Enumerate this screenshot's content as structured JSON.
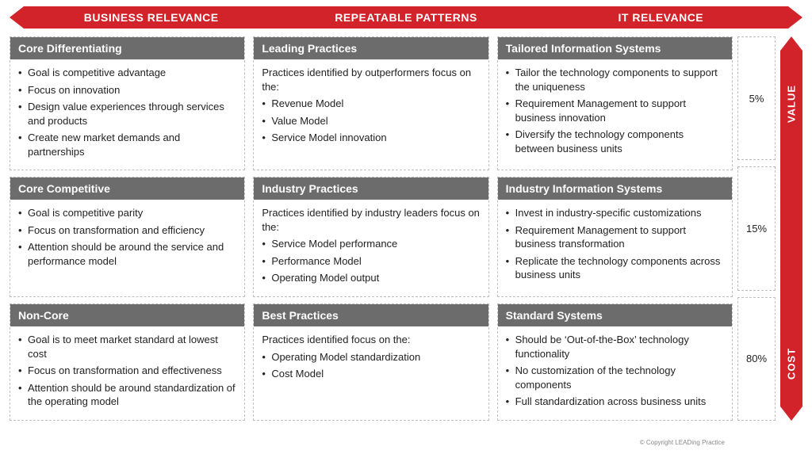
{
  "colors": {
    "red": "#d2232a",
    "gray": "#6c6c6c",
    "border": "#bfbfbf",
    "text": "#222222",
    "bg": "#ffffff"
  },
  "topBanner": {
    "cells": [
      "BUSINESS RELEVANCE",
      "REPEATABLE PATTERNS",
      "IT RELEVANCE"
    ]
  },
  "sideBanner": {
    "top": "VALUE",
    "bottom": "COST"
  },
  "rows": [
    {
      "pct": "5%",
      "cards": [
        {
          "title": "Core Differentiating",
          "lead": null,
          "bullets": [
            "Goal is competitive advantage",
            "Focus on innovation",
            "Design value experiences through services and products",
            "Create new market demands and partnerships"
          ]
        },
        {
          "title": "Leading Practices",
          "lead": "Practices identified by outperformers focus on the:",
          "bullets": [
            "Revenue Model",
            "Value Model",
            "Service Model innovation"
          ]
        },
        {
          "title": "Tailored Information Systems",
          "lead": null,
          "bullets": [
            "Tailor the technology components to support the uniqueness",
            "Requirement Management to support business innovation",
            "Diversify the technology components between business units"
          ]
        }
      ]
    },
    {
      "pct": "15%",
      "cards": [
        {
          "title": "Core Competitive",
          "lead": null,
          "bullets": [
            "Goal is competitive parity",
            "Focus on transformation and efficiency",
            "Attention should be around the service and performance model"
          ]
        },
        {
          "title": "Industry Practices",
          "lead": "Practices identified by industry leaders focus on the:",
          "bullets": [
            "Service Model performance",
            "Performance Model",
            "Operating Model output"
          ]
        },
        {
          "title": "Industry Information Systems",
          "lead": null,
          "bullets": [
            "Invest in industry-specific customizations",
            "Requirement Management to support business transformation",
            "Replicate the technology components across business units"
          ]
        }
      ]
    },
    {
      "pct": "80%",
      "cards": [
        {
          "title": "Non-Core",
          "lead": null,
          "bullets": [
            "Goal is to meet market standard at lowest cost",
            "Focus on transformation and effectiveness",
            "Attention should be around standardization of the operating model"
          ]
        },
        {
          "title": "Best Practices",
          "lead": "Practices identified focus on the:",
          "bullets": [
            "Operating Model standardization",
            "Cost Model"
          ]
        },
        {
          "title": "Standard Systems",
          "lead": null,
          "bullets": [
            "Should be ‘Out-of-the-Box’ technology functionality",
            "No customization of the technology components",
            "Full standardization across business units"
          ]
        }
      ]
    }
  ],
  "copyright": "© Copyright LEADing Practice"
}
